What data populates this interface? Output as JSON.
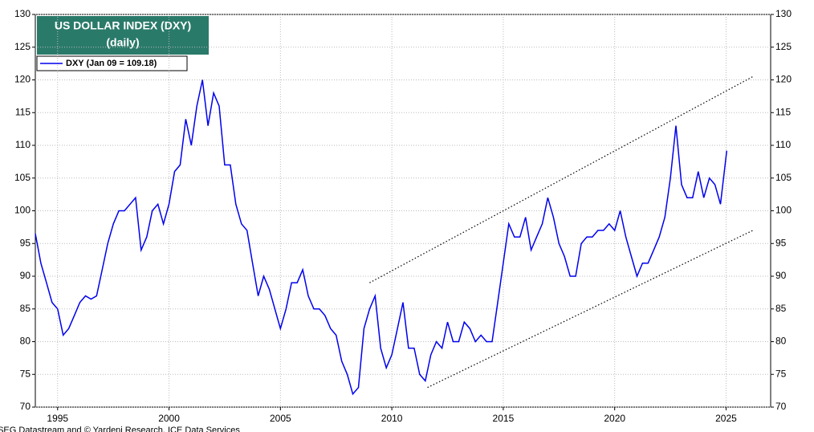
{
  "chart_data": {
    "type": "line",
    "title": "US DOLLAR INDEX (DXY)",
    "subtitle": "(daily)",
    "source": "Source: LSEG Datastream and © Yardeni Research, ICE Data Services",
    "xlim": [
      1994,
      2027
    ],
    "xticks": [
      1995,
      2000,
      2005,
      2010,
      2015,
      2020,
      2025
    ],
    "ylim": [
      70,
      130
    ],
    "yticks": [
      70,
      75,
      80,
      85,
      90,
      95,
      100,
      105,
      110,
      115,
      120,
      125,
      130
    ],
    "grid": true,
    "legend": "top-left",
    "series": [
      {
        "name": "DXY (Jan 09 = 109.18)",
        "color": "#0000ee",
        "x": [
          1994.0,
          1994.25,
          1994.5,
          1994.75,
          1995.0,
          1995.25,
          1995.5,
          1995.75,
          1996.0,
          1996.25,
          1996.5,
          1996.75,
          1997.0,
          1997.25,
          1997.5,
          1997.75,
          1998.0,
          1998.25,
          1998.5,
          1998.75,
          1999.0,
          1999.25,
          1999.5,
          1999.75,
          2000.0,
          2000.25,
          2000.5,
          2000.75,
          2001.0,
          2001.25,
          2001.5,
          2001.75,
          2002.0,
          2002.25,
          2002.5,
          2002.75,
          2003.0,
          2003.25,
          2003.5,
          2003.75,
          2004.0,
          2004.25,
          2004.5,
          2004.75,
          2005.0,
          2005.25,
          2005.5,
          2005.75,
          2006.0,
          2006.25,
          2006.5,
          2006.75,
          2007.0,
          2007.25,
          2007.5,
          2007.75,
          2008.0,
          2008.25,
          2008.5,
          2008.75,
          2009.0,
          2009.25,
          2009.5,
          2009.75,
          2010.0,
          2010.25,
          2010.5,
          2010.75,
          2011.0,
          2011.25,
          2011.5,
          2011.75,
          2012.0,
          2012.25,
          2012.5,
          2012.75,
          2013.0,
          2013.25,
          2013.5,
          2013.75,
          2014.0,
          2014.25,
          2014.5,
          2014.75,
          2015.0,
          2015.25,
          2015.5,
          2015.75,
          2016.0,
          2016.25,
          2016.5,
          2016.75,
          2017.0,
          2017.25,
          2017.5,
          2017.75,
          2018.0,
          2018.25,
          2018.5,
          2018.75,
          2019.0,
          2019.25,
          2019.5,
          2019.75,
          2020.0,
          2020.25,
          2020.5,
          2020.75,
          2021.0,
          2021.25,
          2021.5,
          2021.75,
          2022.0,
          2022.25,
          2022.5,
          2022.75,
          2023.0,
          2023.25,
          2023.5,
          2023.75,
          2024.0,
          2024.25,
          2024.5,
          2024.75,
          2025.03
        ],
        "values": [
          96.5,
          92,
          89,
          86,
          85,
          81,
          82,
          84,
          86,
          87,
          86.5,
          87,
          91,
          95,
          98,
          100,
          100,
          101,
          102,
          94,
          96,
          100,
          101,
          98,
          101,
          106,
          107,
          114,
          110,
          116,
          120,
          113,
          118,
          116,
          107,
          107,
          101,
          98,
          97,
          92,
          87,
          90,
          88,
          85,
          82,
          85,
          89,
          89,
          91,
          87,
          85,
          85,
          84,
          82,
          81,
          77,
          75,
          72,
          73,
          82,
          85,
          87,
          79,
          76,
          78,
          82,
          86,
          79,
          79,
          75,
          74,
          78,
          80,
          79,
          83,
          80,
          80,
          83,
          82,
          80,
          81,
          80,
          80,
          86,
          92,
          98,
          96,
          96,
          99,
          94,
          96,
          98,
          102,
          99,
          95,
          93,
          90,
          90,
          95,
          96,
          96,
          97,
          97,
          98,
          97,
          100,
          96,
          93,
          90,
          92,
          92,
          94,
          96,
          99,
          105,
          113,
          104,
          102,
          102,
          106,
          102,
          105,
          104,
          101,
          109.18
        ]
      }
    ],
    "trendlines": [
      {
        "x": [
          2009,
          2026.2
        ],
        "y": [
          89,
          120.5
        ]
      },
      {
        "x": [
          2011.6,
          2026.2
        ],
        "y": [
          73,
          97
        ]
      }
    ]
  }
}
